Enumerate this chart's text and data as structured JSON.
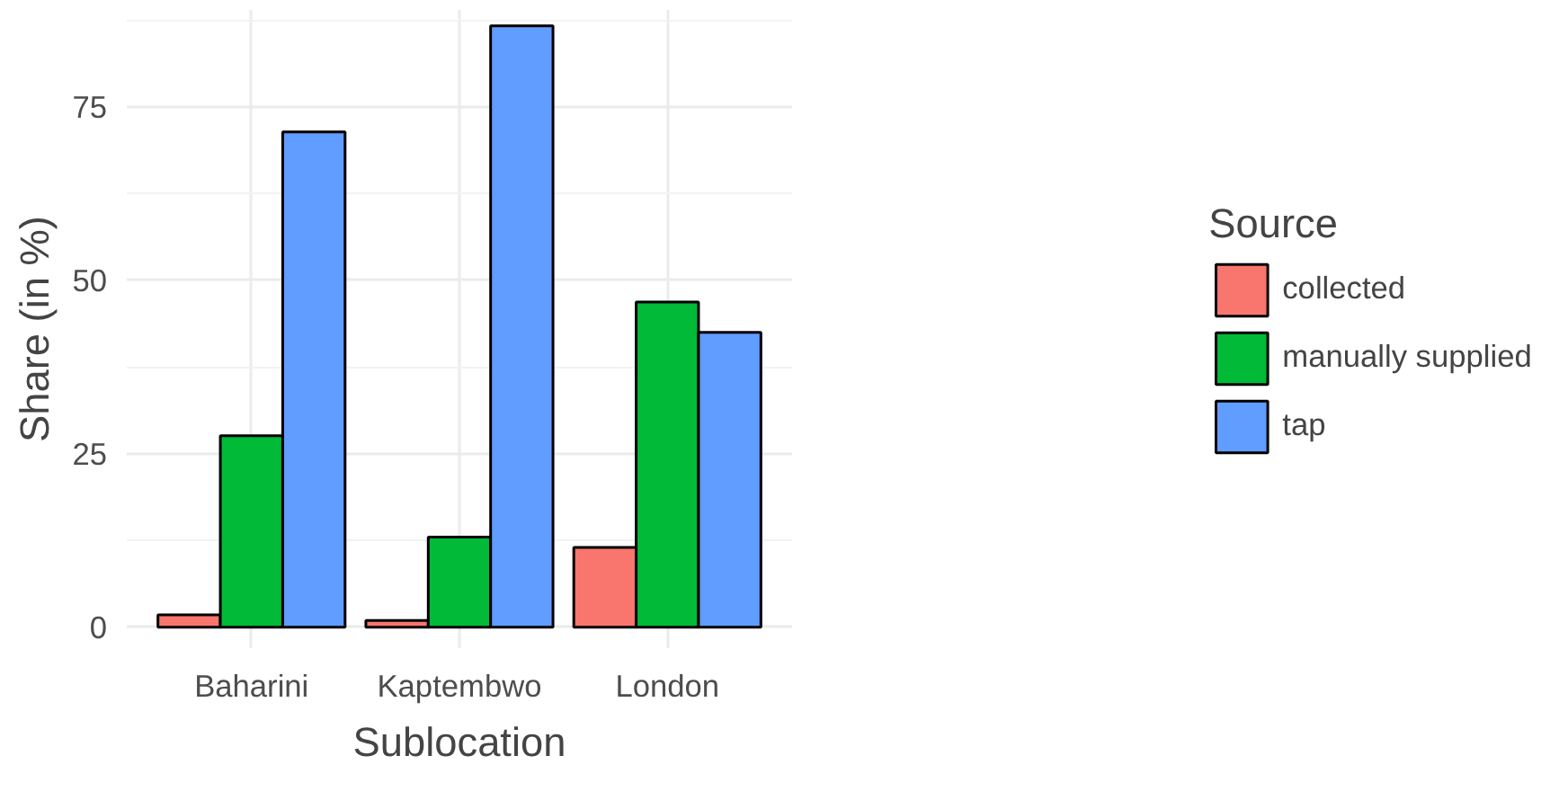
{
  "chart_data": {
    "type": "bar",
    "xlabel": "Sublocation",
    "ylabel": "Share (in %)",
    "legend_title": "Source",
    "categories": [
      "Baharini",
      "Kaptembwo",
      "London"
    ],
    "series": [
      {
        "name": "collected",
        "color": "#f8766d",
        "values": [
          1.8,
          1.0,
          11.5
        ]
      },
      {
        "name": "manually supplied",
        "color": "#00ba38",
        "values": [
          27.6,
          13.0,
          46.9
        ]
      },
      {
        "name": "tap",
        "color": "#619cff",
        "values": [
          71.4,
          86.7,
          42.5
        ]
      }
    ],
    "ylim": [
      -3,
      89
    ],
    "yticks": [
      0,
      25,
      50,
      75
    ],
    "grid": true,
    "legend": "right"
  }
}
